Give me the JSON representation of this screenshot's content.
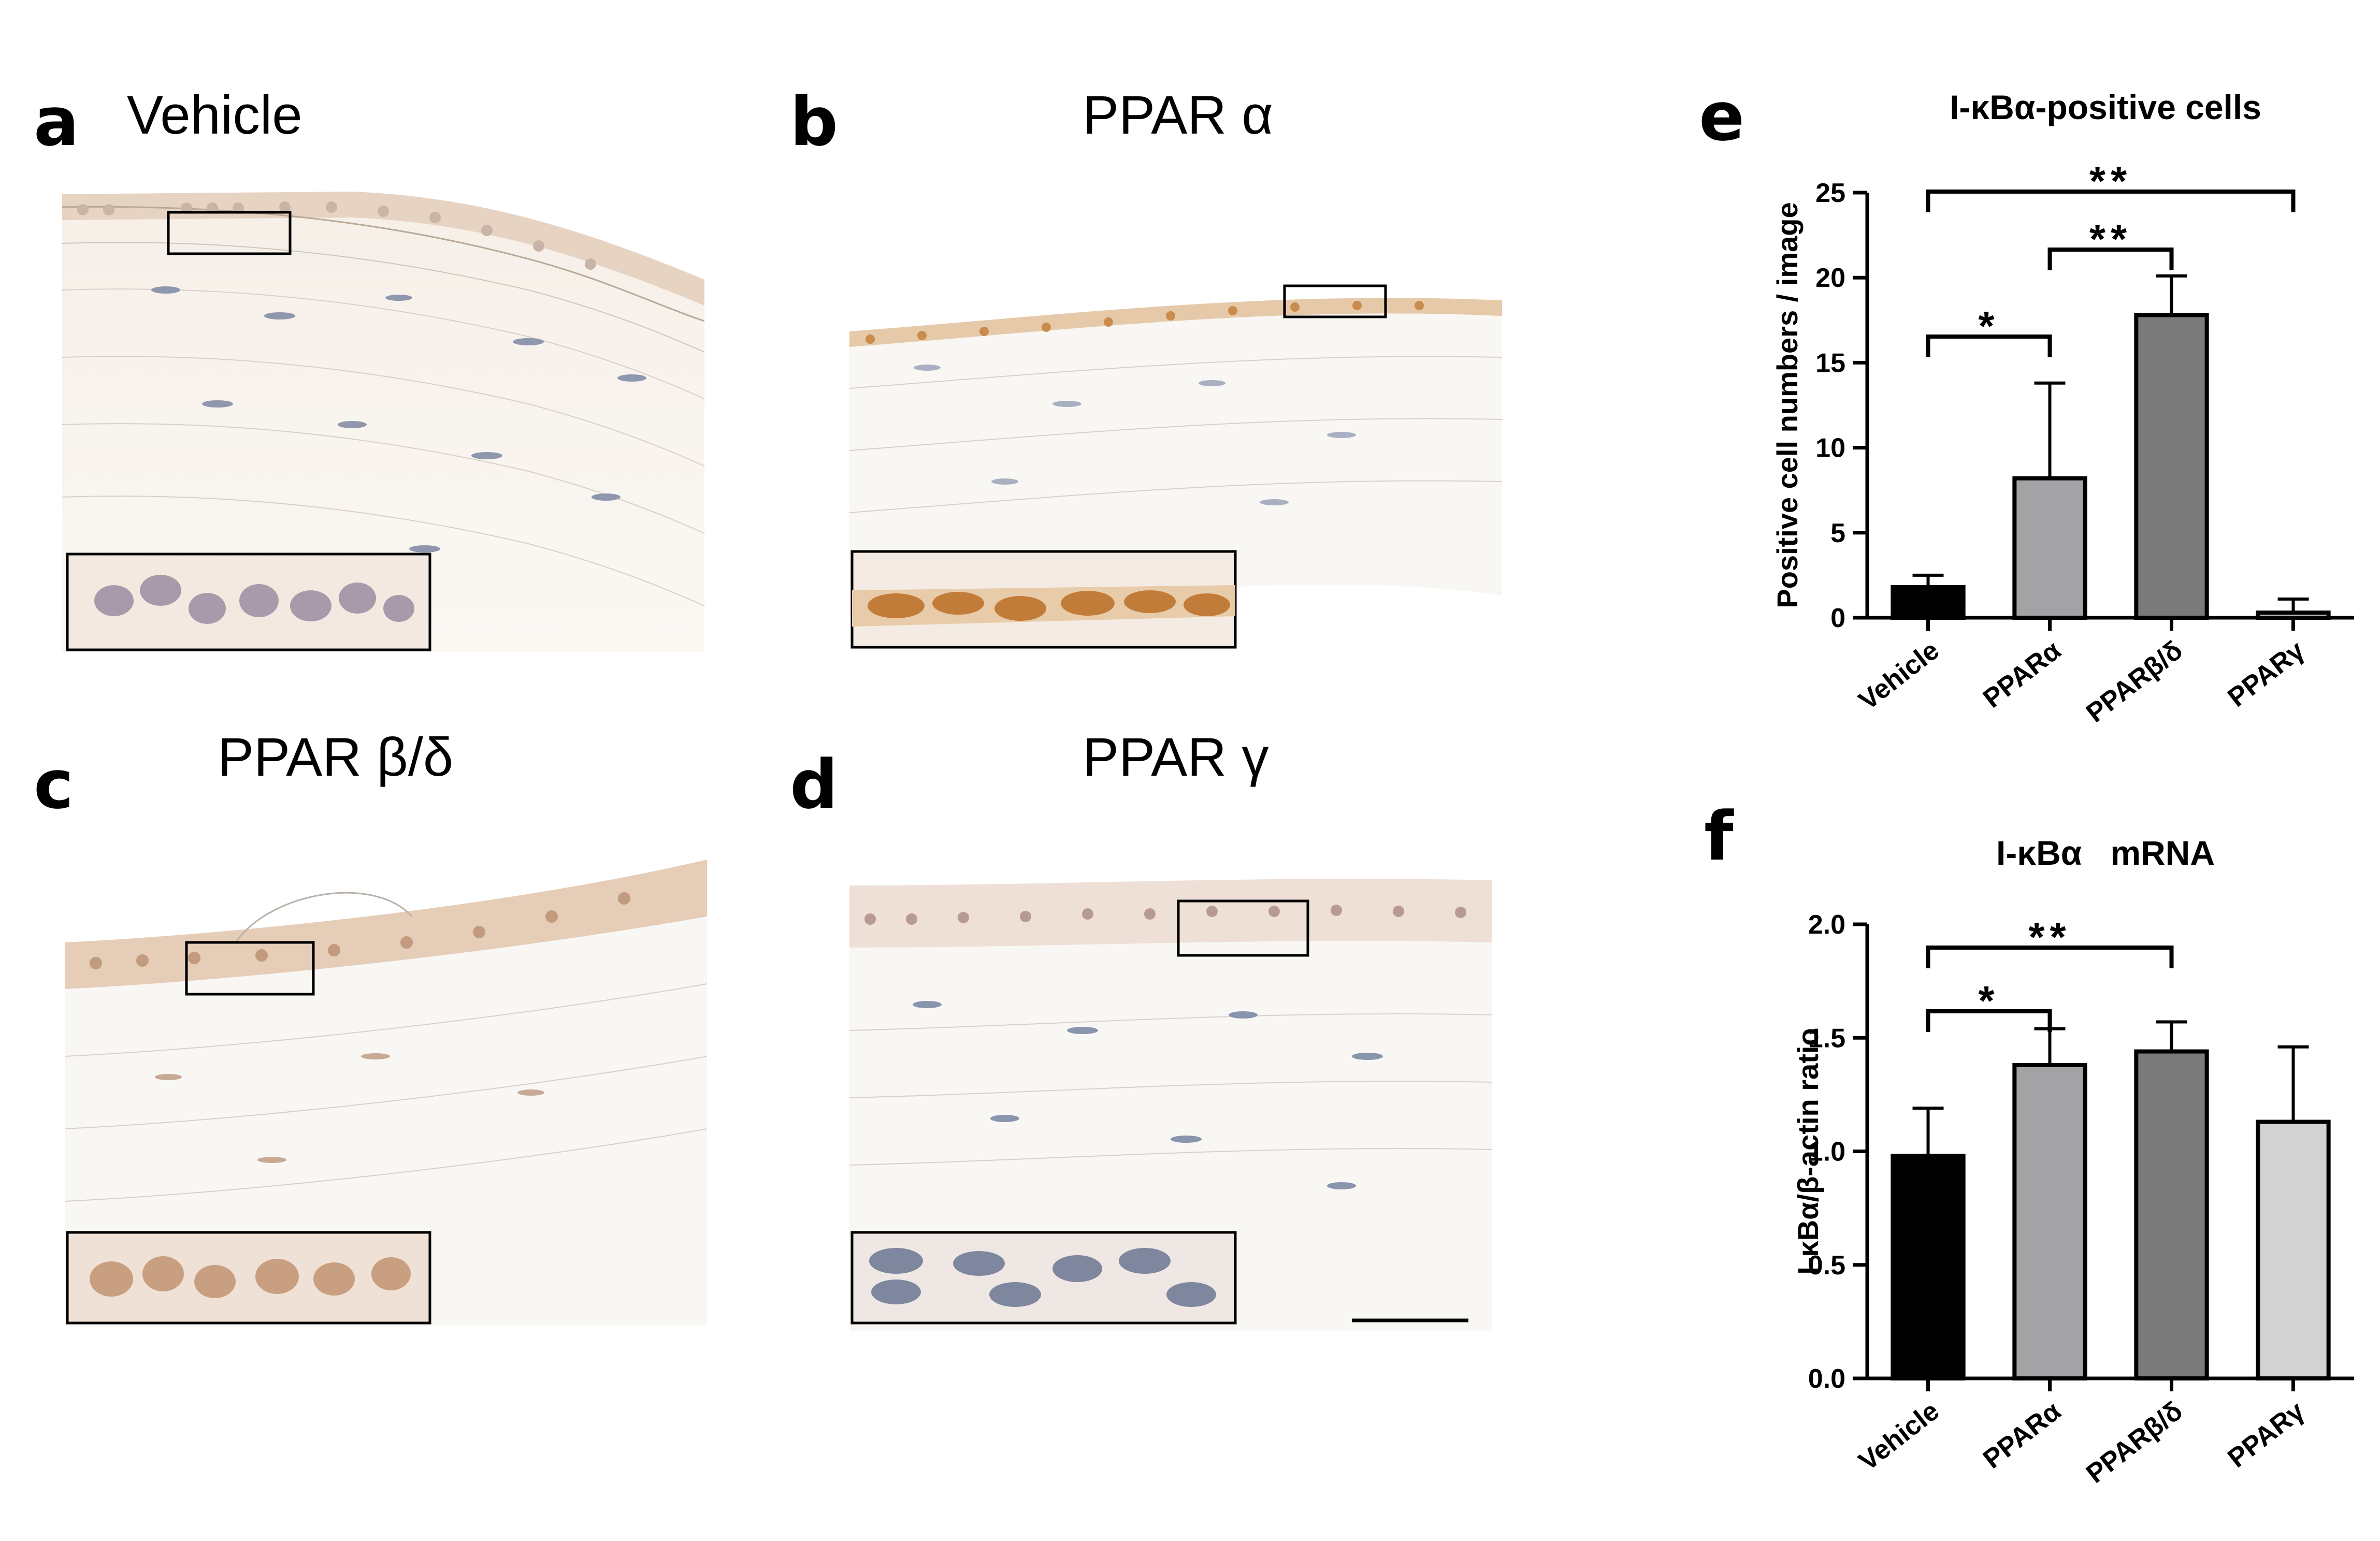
{
  "panels": [
    {
      "letter": "a",
      "title": "Vehicle"
    },
    {
      "letter": "b",
      "title": "PPAR α"
    },
    {
      "letter": "c",
      "title": "PPAR β/δ"
    },
    {
      "letter": "d",
      "title": "PPAR γ"
    }
  ],
  "chart_data": [
    {
      "letter": "e",
      "type": "bar",
      "title": "I-κBα-positive cells",
      "ylabel": "Positive cell numbers / image",
      "xlabel": "",
      "categories": [
        "Vehicle",
        "PPARα",
        "PPARβ/δ",
        "PPARγ"
      ],
      "values": [
        1.8,
        8.2,
        17.8,
        0.3
      ],
      "errors": [
        0.7,
        5.6,
        2.3,
        0.8
      ],
      "colors": [
        "#000000",
        "#a3a3a6",
        "#7a7a7a",
        "#cccccc"
      ],
      "ylim": [
        0,
        25
      ],
      "yticks": [
        0,
        5,
        10,
        15,
        20,
        25
      ],
      "ytick_labels": [
        "0",
        "5",
        "10",
        "15",
        "20",
        "25"
      ],
      "significance": [
        {
          "from": 0,
          "to": 3,
          "label": "**"
        },
        {
          "from": 1,
          "to": 2,
          "label": "**"
        },
        {
          "from": 0,
          "to": 1,
          "label": "*"
        }
      ]
    },
    {
      "letter": "f",
      "type": "bar",
      "title": "I-κBα   mRNA",
      "ylabel": "I-κBα/β-actin ratio",
      "xlabel": "",
      "categories": [
        "Vehicle",
        "PPARα",
        "PPARβ/δ",
        "PPARγ"
      ],
      "values": [
        0.98,
        1.38,
        1.44,
        1.13
      ],
      "errors": [
        0.21,
        0.16,
        0.13,
        0.33
      ],
      "colors": [
        "#000000",
        "#a3a3a6",
        "#7a7a7a",
        "#d3d3d3"
      ],
      "ylim": [
        0,
        2.0
      ],
      "yticks": [
        0,
        0.5,
        1.0,
        1.5,
        2.0
      ],
      "ytick_labels": [
        "0.0",
        "0.5",
        "1.0",
        "1.5",
        "2.0"
      ],
      "significance": [
        {
          "from": 0,
          "to": 2,
          "label": "**"
        },
        {
          "from": 0,
          "to": 1,
          "label": "*"
        }
      ]
    }
  ]
}
